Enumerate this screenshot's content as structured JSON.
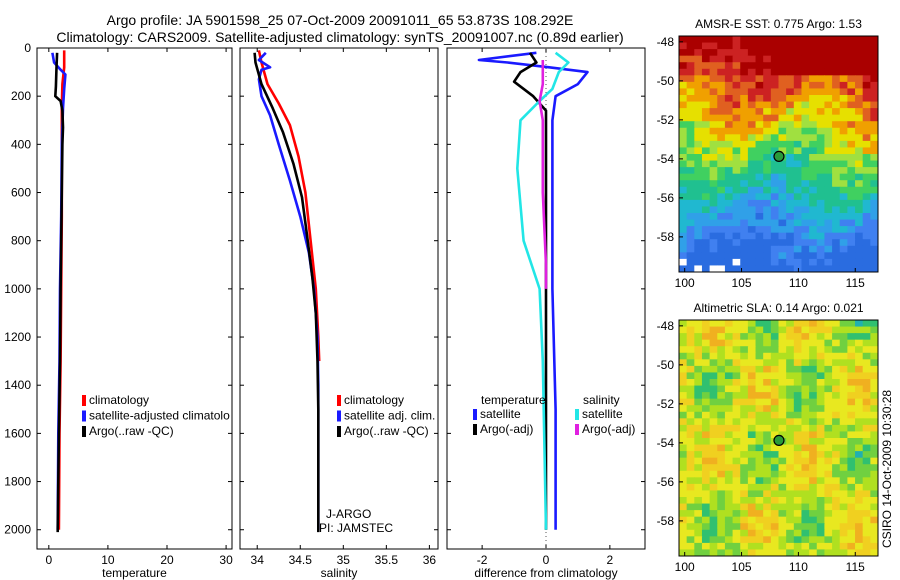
{
  "header": {
    "line1": "Argo profile: JA 5901598_25 07-Oct-2009 20091011_65 53.873S 108.292E",
    "line2": "Climatology: CARS2009. Satellite-adjusted climatology: synTS_20091007.nc (0.89d earlier)"
  },
  "colors": {
    "climatology": "#ff0000",
    "satellite": "#1a1aff",
    "argo": "#000000",
    "sal_satellite": "#22e6e6",
    "sal_argo": "#e020e0"
  },
  "chart_data": [
    {
      "id": "temperature",
      "type": "line",
      "xlabel": "temperature",
      "ylabel": "",
      "xlim": [
        -2,
        31
      ],
      "ylim": [
        2080,
        0
      ],
      "xticks": [
        0,
        10,
        20,
        30
      ],
      "xtick_labels": [
        "0",
        "10",
        "20",
        "30"
      ],
      "yticks": [
        0,
        200,
        400,
        600,
        800,
        1000,
        1200,
        1400,
        1600,
        1800,
        2000
      ],
      "ytick_labels": [
        "0",
        "200",
        "400",
        "600",
        "800",
        "1000",
        "1200",
        "1400",
        "1600",
        "1800",
        "2000"
      ],
      "legend": [
        "climatology",
        "satellite-adjusted climatolo",
        "Argo(..raw -QC)"
      ],
      "series": [
        {
          "name": "climatology",
          "color": "#ff0000",
          "points": [
            [
              2.6,
              10
            ],
            [
              2.6,
              80
            ],
            [
              2.3,
              150
            ],
            [
              2.2,
              250
            ],
            [
              2.2,
              400
            ],
            [
              2.2,
              700
            ],
            [
              2.1,
              1000
            ],
            [
              2.0,
              1300
            ],
            [
              1.8,
              1600
            ],
            [
              1.7,
              2000
            ]
          ]
        },
        {
          "name": "satellite-adjusted climatolo",
          "color": "#1a1aff",
          "points": [
            [
              0.6,
              20
            ],
            [
              0.9,
              60
            ],
            [
              2.0,
              90
            ],
            [
              2.8,
              110
            ],
            [
              2.6,
              170
            ],
            [
              2.4,
              250
            ],
            [
              2.2,
              400
            ],
            [
              2.1,
              700
            ],
            [
              1.9,
              1000
            ],
            [
              1.8,
              1300
            ],
            [
              1.6,
              1600
            ],
            [
              1.5,
              2000
            ]
          ]
        },
        {
          "name": "Argo(..raw -QC)",
          "color": "#000000",
          "points": [
            [
              1.4,
              20
            ],
            [
              1.3,
              80
            ],
            [
              1.2,
              160
            ],
            [
              1.1,
              200
            ],
            [
              2.0,
              220
            ],
            [
              2.3,
              260
            ],
            [
              2.4,
              330
            ],
            [
              2.3,
              400
            ],
            [
              2.2,
              600
            ],
            [
              2.1,
              800
            ],
            [
              2.0,
              1000
            ],
            [
              1.9,
              1300
            ],
            [
              1.7,
              1600
            ],
            [
              1.6,
              1800
            ],
            [
              1.5,
              2010
            ]
          ]
        }
      ]
    },
    {
      "id": "salinity",
      "type": "line",
      "xlabel": "salinity",
      "ylabel": "",
      "xlim": [
        33.8,
        36.1
      ],
      "ylim": [
        2080,
        0
      ],
      "xticks": [
        34,
        34.5,
        35,
        35.5,
        36
      ],
      "xtick_labels": [
        "34",
        "34.5",
        "35",
        "35.5",
        "36"
      ],
      "legend": [
        "climatology",
        "satellite adj. clim.",
        "Argo(..raw -QC)"
      ],
      "annotations": [
        "J-ARGO",
        "PI: JAMSTEC"
      ],
      "series": [
        {
          "name": "climatology",
          "color": "#ff0000",
          "points": [
            [
              34.02,
              10
            ],
            [
              34.05,
              60
            ],
            [
              34.12,
              150
            ],
            [
              34.25,
              230
            ],
            [
              34.38,
              320
            ],
            [
              34.48,
              450
            ],
            [
              34.56,
              600
            ],
            [
              34.62,
              800
            ],
            [
              34.68,
              1000
            ],
            [
              34.71,
              1200
            ],
            [
              34.72,
              1300
            ]
          ]
        },
        {
          "name": "satellite adj. clim.",
          "color": "#1a1aff",
          "points": [
            [
              34.1,
              20
            ],
            [
              34.02,
              50
            ],
            [
              34.15,
              80
            ],
            [
              34.05,
              90
            ],
            [
              34.02,
              130
            ],
            [
              34.05,
              200
            ],
            [
              34.15,
              280
            ],
            [
              34.25,
              400
            ],
            [
              34.38,
              550
            ],
            [
              34.5,
              700
            ],
            [
              34.6,
              850
            ],
            [
              34.66,
              1000
            ],
            [
              34.7,
              1200
            ],
            [
              34.71,
              1400
            ],
            [
              34.71,
              1700
            ],
            [
              34.71,
              2000
            ]
          ]
        },
        {
          "name": "Argo(..raw -QC)",
          "color": "#000000",
          "points": [
            [
              33.97,
              20
            ],
            [
              33.98,
              60
            ],
            [
              34.05,
              150
            ],
            [
              34.18,
              250
            ],
            [
              34.3,
              350
            ],
            [
              34.42,
              480
            ],
            [
              34.52,
              620
            ],
            [
              34.58,
              780
            ],
            [
              34.64,
              950
            ],
            [
              34.68,
              1100
            ],
            [
              34.7,
              1300
            ],
            [
              34.71,
              1500
            ],
            [
              34.71,
              1700
            ],
            [
              34.71,
              2010
            ]
          ]
        }
      ]
    },
    {
      "id": "difference",
      "type": "line",
      "xlabel": "difference from climatology",
      "ylabel": "",
      "xlim": [
        -3.1,
        3.1
      ],
      "ylim": [
        2080,
        0
      ],
      "xticks": [
        -2,
        0,
        2
      ],
      "xtick_labels": [
        "-2",
        "0",
        "2"
      ],
      "legend_temperature_title": "temperature",
      "legend_salinity_title": "salinity",
      "legend": [
        "satellite",
        "Argo(-adj)",
        "satellite",
        "Argo(-adj)"
      ],
      "series": [
        {
          "name": "temperature satellite",
          "color": "#1a1aff",
          "points": [
            [
              -0.3,
              20
            ],
            [
              -2.1,
              50
            ],
            [
              -1.2,
              60
            ],
            [
              0.1,
              80
            ],
            [
              1.3,
              100
            ],
            [
              1.0,
              150
            ],
            [
              0.3,
              200
            ],
            [
              0.2,
              300
            ],
            [
              0.2,
              600
            ],
            [
              0.2,
              1000
            ],
            [
              0.3,
              1500
            ],
            [
              0.3,
              2000
            ]
          ]
        },
        {
          "name": "temperature Argo(-adj)",
          "color": "#000000",
          "points": [
            [
              -0.5,
              20
            ],
            [
              -0.3,
              60
            ],
            [
              -0.8,
              100
            ],
            [
              -1.0,
              140
            ],
            [
              -0.4,
              200
            ],
            [
              0.0,
              260
            ],
            [
              0.0,
              500
            ],
            [
              0.0,
              1000
            ],
            [
              0.0,
              1500
            ],
            [
              0.0,
              2000
            ]
          ]
        },
        {
          "name": "salinity satellite",
          "color": "#22e6e6",
          "points": [
            [
              0.3,
              20
            ],
            [
              0.7,
              60
            ],
            [
              0.4,
              100
            ],
            [
              0.2,
              170
            ],
            [
              -0.2,
              220
            ],
            [
              -0.8,
              300
            ],
            [
              -0.9,
              500
            ],
            [
              -0.7,
              800
            ],
            [
              -0.2,
              1000
            ],
            [
              -0.1,
              1300
            ],
            [
              0.0,
              2000
            ]
          ]
        },
        {
          "name": "salinity Argo(-adj)",
          "color": "#e020e0",
          "points": [
            [
              -0.1,
              50
            ],
            [
              -0.1,
              150
            ],
            [
              -0.2,
              220
            ],
            [
              -0.1,
              300
            ],
            [
              -0.1,
              600
            ],
            [
              0.0,
              900
            ],
            [
              0.0,
              1000
            ]
          ]
        }
      ]
    },
    {
      "id": "sst_map",
      "type": "heatmap",
      "title": "AMSR-E SST: 0.775 Argo: 1.53",
      "xlim": [
        99.5,
        117
      ],
      "ylim": [
        -59.8,
        -47.7
      ],
      "xticks": [
        100,
        105,
        110,
        115
      ],
      "xtick_labels": [
        "100",
        "105",
        "110",
        "115"
      ],
      "yticks": [
        -48,
        -50,
        -52,
        -54,
        -56,
        -58
      ],
      "ytick_labels": [
        "-48",
        "-50",
        "-52",
        "-54",
        "-56",
        "-58"
      ],
      "marker": {
        "lon": 108.292,
        "lat": -53.873
      }
    },
    {
      "id": "sla_map",
      "type": "heatmap",
      "title": "Altimetric SLA: 0.14 Argo: 0.021",
      "xlim": [
        99.5,
        117
      ],
      "ylim": [
        -59.8,
        -47.7
      ],
      "xticks": [
        100,
        105,
        110,
        115
      ],
      "xtick_labels": [
        "100",
        "105",
        "110",
        "115"
      ],
      "yticks": [
        -48,
        -50,
        -52,
        -54,
        -56,
        -58
      ],
      "ytick_labels": [
        "-48",
        "-50",
        "-52",
        "-54",
        "-56",
        "-58"
      ],
      "marker": {
        "lon": 108.292,
        "lat": -53.873
      }
    }
  ],
  "footer": {
    "side_label": "CSIRO 14-Oct-2009 10:30:28"
  }
}
